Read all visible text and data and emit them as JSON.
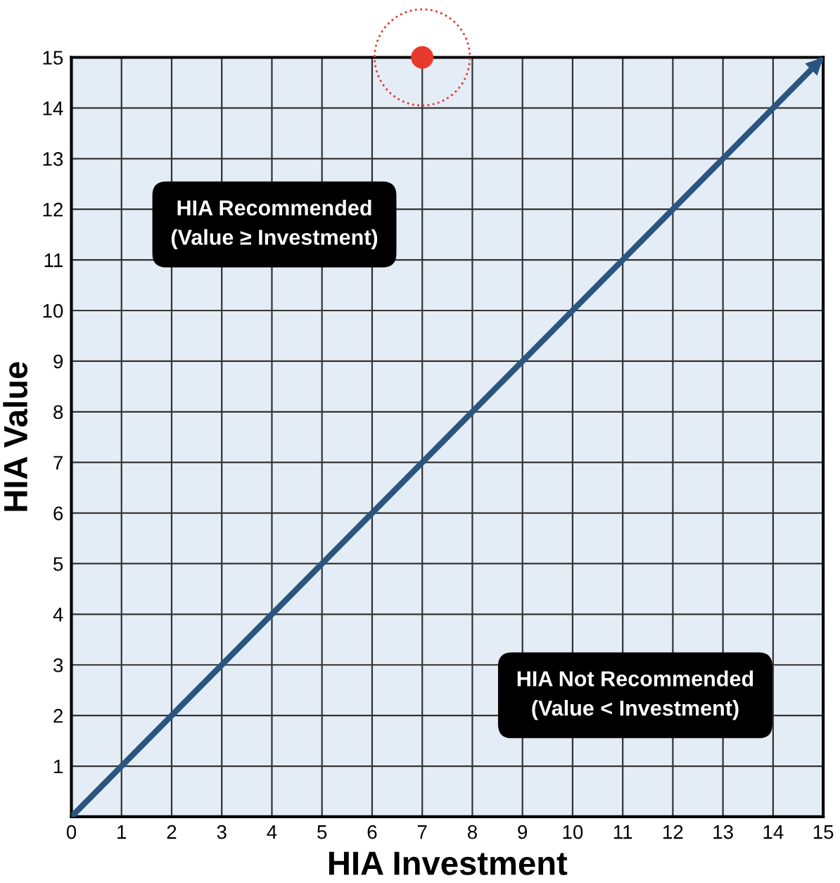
{
  "chart_data": {
    "type": "line",
    "xlabel": "HIA Investment",
    "ylabel": "HIA Value",
    "xlim": [
      0,
      15
    ],
    "ylim": [
      0,
      15
    ],
    "xticks": [
      0,
      1,
      2,
      3,
      4,
      5,
      6,
      7,
      8,
      9,
      10,
      11,
      12,
      13,
      14,
      15
    ],
    "yticks": [
      1,
      2,
      3,
      4,
      5,
      6,
      7,
      8,
      9,
      10,
      11,
      12,
      13,
      14,
      15
    ],
    "grid": true,
    "line_style": "solid",
    "series": [
      {
        "color": "#2b5581",
        "x": [
          0,
          15
        ],
        "values": [
          0,
          15
        ]
      },
      {
        "type": "scatter",
        "marker": "circle",
        "color": "#e8392c",
        "x": [
          7
        ],
        "values": [
          15
        ]
      }
    ],
    "annotations": [
      "HIA Recommended\n(Value ≥ Investment)",
      "HIA Not Recommended\n(Value < Investment)"
    ]
  }
}
